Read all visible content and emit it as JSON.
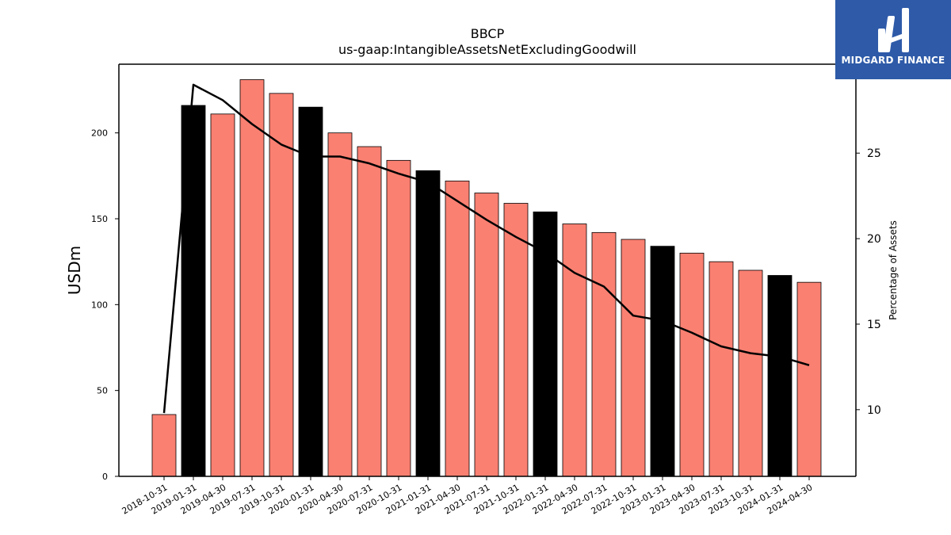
{
  "chart_data": {
    "type": "bar",
    "title": "BBCP",
    "subtitle": "us-gaap:IntangibleAssetsNetExcludingGoodwill",
    "ylabel": "USDm",
    "y2label": "Percentage of Assets",
    "ylim": [
      0,
      240
    ],
    "y2lim": [
      6.1,
      30.2
    ],
    "yticks": [
      0,
      50,
      100,
      150,
      200
    ],
    "y2ticks": [
      10,
      15,
      20,
      25
    ],
    "grid": false,
    "categories": [
      "2018-10-31",
      "2019-01-31",
      "2019-04-30",
      "2019-07-31",
      "2019-10-31",
      "2020-01-31",
      "2020-04-30",
      "2020-07-31",
      "2020-10-31",
      "2021-01-31",
      "2021-04-30",
      "2021-07-31",
      "2021-10-31",
      "2022-01-31",
      "2022-04-30",
      "2022-07-31",
      "2022-10-31",
      "2023-01-31",
      "2023-04-30",
      "2023-07-31",
      "2023-10-31",
      "2024-01-31",
      "2024-04-30"
    ],
    "series": [
      {
        "type": "bar",
        "axis": "left",
        "values": [
          36,
          216,
          211,
          231,
          223,
          215,
          200,
          192,
          184,
          178,
          172,
          165,
          159,
          154,
          147,
          142,
          138,
          134,
          130,
          125,
          120,
          117,
          113
        ],
        "colors": [
          "#fa8072",
          "#000000",
          "#fa8072",
          "#fa8072",
          "#fa8072",
          "#000000",
          "#fa8072",
          "#fa8072",
          "#fa8072",
          "#000000",
          "#fa8072",
          "#fa8072",
          "#fa8072",
          "#000000",
          "#fa8072",
          "#fa8072",
          "#fa8072",
          "#000000",
          "#fa8072",
          "#fa8072",
          "#fa8072",
          "#000000",
          "#fa8072"
        ]
      },
      {
        "type": "line",
        "axis": "right",
        "color": "#000000",
        "values": [
          9.8,
          29.0,
          28.1,
          26.7,
          25.5,
          24.8,
          24.8,
          24.4,
          23.8,
          23.3,
          22.2,
          21.1,
          20.1,
          19.2,
          18.0,
          17.2,
          15.5,
          15.2,
          14.5,
          13.7,
          13.3,
          13.1,
          12.6
        ]
      }
    ]
  },
  "logo": {
    "text": "MIDGARD FINANCE",
    "background": "#2e5aa8"
  }
}
